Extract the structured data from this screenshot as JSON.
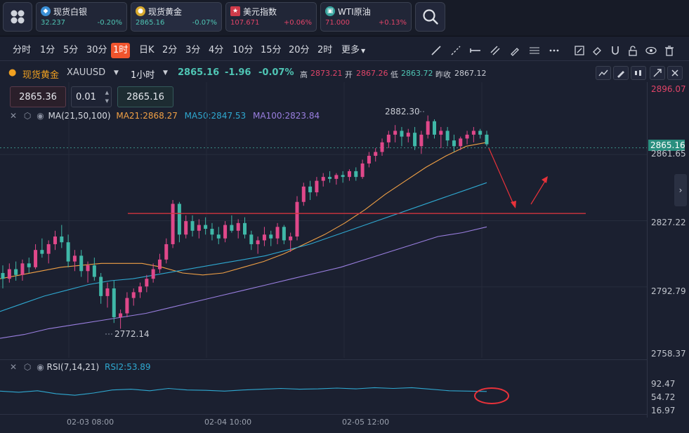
{
  "tickers": [
    {
      "name": "现货白银",
      "price": "32.237",
      "change": "-0.20%",
      "icon_color": "#3a8fd6",
      "price_color": "#4fc5b4",
      "change_color": "#4fc5b4",
      "icon": "silver-coin-icon"
    },
    {
      "name": "现货黄金",
      "price": "2865.16",
      "change": "-0.07%",
      "icon_color": "#d8a92e",
      "price_color": "#4fc5b4",
      "change_color": "#4fc5b4",
      "icon": "gold-coin-icon"
    },
    {
      "name": "美元指数",
      "price": "107.671",
      "change": "+0.06%",
      "icon_color": "#cf3b4a",
      "price_color": "#e04468",
      "change_color": "#e04468",
      "icon": "us-flag-icon"
    },
    {
      "name": "WTI原油",
      "price": "71.000",
      "change": "+0.13%",
      "icon_color": "#3aa6a0",
      "price_color": "#e04468",
      "change_color": "#e04468",
      "icon": "oil-icon"
    }
  ],
  "timeframes": [
    "分时",
    "1分",
    "5分",
    "30分",
    "1时",
    "日K",
    "2分",
    "3分",
    "4分",
    "10分",
    "15分",
    "20分",
    "2时",
    "更多"
  ],
  "active_timeframe": "1时",
  "header": {
    "symbol_cn": "现货黄金",
    "symbol": "XAUUSD",
    "period": "1小时",
    "last": "2865.16",
    "change": "-1.96",
    "change_pct": "-0.07%",
    "high_label": "高",
    "high": "2873.21",
    "open_label": "开",
    "open": "2867.26",
    "low_label": "低",
    "low": "2863.72",
    "prev_label": "昨收",
    "prev": "2867.12"
  },
  "order": {
    "price": "2865.36",
    "lots": "0.01",
    "price2": "2865.16"
  },
  "ma_legend": {
    "label": "MA(21,50,100)",
    "ma21": "MA21:2868.27",
    "ma50": "MA50:2847.53",
    "ma100": "MA100:2823.84"
  },
  "colors": {
    "up": "#e0488a",
    "down": "#3fb8a8",
    "ma21": "#f0a045",
    "ma50": "#2fa8d0",
    "ma100": "#9a7fe0",
    "accent": "#f0542d",
    "support": "#d0343e"
  },
  "price_axis": {
    "p1": "2896.07",
    "p2": "2865.16",
    "p3": "2861.65",
    "p4": "2827.22",
    "p5": "2792.79",
    "p6": "2758.37"
  },
  "annotations": {
    "high_label": "2882.30",
    "low_label": "2772.14"
  },
  "rsi": {
    "label": "RSI(7,14,21)",
    "value": "RSI2:53.89",
    "t1": "92.47",
    "t2": "54.72",
    "t3": "16.97"
  },
  "time_axis": [
    "02-03 08:00",
    "02-04 10:00",
    "02-05 12:00"
  ],
  "chart_data": {
    "type": "candlestick",
    "ylim": [
      2758.37,
      2896.07
    ],
    "candles": [
      [
        2800,
        2804,
        2792,
        2797
      ],
      [
        2797,
        2805,
        2795,
        2802
      ],
      [
        2802,
        2806,
        2796,
        2799
      ],
      [
        2799,
        2807,
        2796,
        2805
      ],
      [
        2805,
        2808,
        2800,
        2803
      ],
      [
        2803,
        2815,
        2802,
        2812
      ],
      [
        2812,
        2818,
        2808,
        2810
      ],
      [
        2810,
        2817,
        2805,
        2815
      ],
      [
        2815,
        2822,
        2812,
        2819
      ],
      [
        2819,
        2825,
        2813,
        2816
      ],
      [
        2816,
        2820,
        2803,
        2806
      ],
      [
        2806,
        2812,
        2801,
        2809
      ],
      [
        2809,
        2812,
        2798,
        2801
      ],
      [
        2801,
        2806,
        2795,
        2804
      ],
      [
        2804,
        2808,
        2796,
        2798
      ],
      [
        2798,
        2800,
        2784,
        2788
      ],
      [
        2788,
        2795,
        2782,
        2792
      ],
      [
        2792,
        2796,
        2774,
        2777
      ],
      [
        2777,
        2781,
        2771,
        2779
      ],
      [
        2779,
        2790,
        2777,
        2787
      ],
      [
        2787,
        2792,
        2783,
        2790
      ],
      [
        2790,
        2795,
        2787,
        2793
      ],
      [
        2793,
        2799,
        2790,
        2797
      ],
      [
        2797,
        2805,
        2795,
        2802
      ],
      [
        2802,
        2810,
        2800,
        2807
      ],
      [
        2807,
        2818,
        2805,
        2815
      ],
      [
        2815,
        2838,
        2813,
        2836
      ],
      [
        2836,
        2837,
        2816,
        2820
      ],
      [
        2820,
        2830,
        2818,
        2827
      ],
      [
        2827,
        2830,
        2819,
        2822
      ],
      [
        2822,
        2828,
        2818,
        2825
      ],
      [
        2825,
        2829,
        2820,
        2823
      ],
      [
        2823,
        2826,
        2817,
        2820
      ],
      [
        2820,
        2824,
        2815,
        2818
      ],
      [
        2818,
        2827,
        2816,
        2825
      ],
      [
        2825,
        2830,
        2821,
        2822
      ],
      [
        2822,
        2828,
        2818,
        2826
      ],
      [
        2826,
        2829,
        2818,
        2820
      ],
      [
        2820,
        2822,
        2812,
        2815
      ],
      [
        2815,
        2819,
        2810,
        2817
      ],
      [
        2817,
        2824,
        2814,
        2820
      ],
      [
        2820,
        2822,
        2814,
        2818
      ],
      [
        2818,
        2826,
        2815,
        2824
      ],
      [
        2824,
        2825,
        2815,
        2817
      ],
      [
        2817,
        2821,
        2811,
        2819
      ],
      [
        2819,
        2840,
        2817,
        2837
      ],
      [
        2837,
        2847,
        2835,
        2845
      ],
      [
        2845,
        2848,
        2838,
        2842
      ],
      [
        2842,
        2850,
        2840,
        2848
      ],
      [
        2848,
        2852,
        2845,
        2850
      ],
      [
        2850,
        2853,
        2847,
        2849
      ],
      [
        2849,
        2852,
        2846,
        2851
      ],
      [
        2851,
        2853,
        2847,
        2850
      ],
      [
        2850,
        2854,
        2848,
        2853
      ],
      [
        2853,
        2855,
        2848,
        2850
      ],
      [
        2850,
        2859,
        2849,
        2857
      ],
      [
        2857,
        2863,
        2855,
        2861
      ],
      [
        2861,
        2865,
        2858,
        2863
      ],
      [
        2863,
        2870,
        2861,
        2868
      ],
      [
        2868,
        2874,
        2865,
        2872
      ],
      [
        2872,
        2877,
        2868,
        2874
      ],
      [
        2874,
        2876,
        2866,
        2871
      ],
      [
        2871,
        2875,
        2868,
        2873
      ],
      [
        2873,
        2876,
        2864,
        2866
      ],
      [
        2866,
        2874,
        2862,
        2872
      ],
      [
        2872,
        2882,
        2870,
        2879
      ],
      [
        2879,
        2880,
        2870,
        2872
      ],
      [
        2872,
        2876,
        2865,
        2874
      ],
      [
        2874,
        2876,
        2866,
        2869
      ],
      [
        2869,
        2872,
        2863,
        2866
      ],
      [
        2866,
        2871,
        2864,
        2870
      ],
      [
        2870,
        2874,
        2867,
        2872
      ],
      [
        2872,
        2876,
        2868,
        2874
      ],
      [
        2874,
        2875,
        2870,
        2872
      ],
      [
        2872,
        2874,
        2866,
        2867
      ]
    ],
    "ma21": [
      2797,
      2799,
      2801,
      2803,
      2804,
      2805,
      2805,
      2805,
      2803,
      2800,
      2799,
      2800,
      2803,
      2806,
      2810,
      2815,
      2820,
      2826,
      2833,
      2841,
      2848,
      2855,
      2861,
      2866,
      2868
    ],
    "ma50": [
      2780,
      2784,
      2788,
      2791,
      2794,
      2796,
      2797,
      2799,
      2801,
      2803,
      2805,
      2807,
      2809,
      2812,
      2815,
      2819,
      2823,
      2827,
      2831,
      2835,
      2839,
      2843,
      2847
    ],
    "ma100": [
      2766,
      2768,
      2771,
      2773,
      2775,
      2777,
      2779,
      2782,
      2785,
      2788,
      2791,
      2794,
      2797,
      2800,
      2803,
      2807,
      2811,
      2815,
      2819,
      2821,
      2824
    ],
    "support_level": 2831,
    "rsi": [
      55,
      52,
      56,
      48,
      44,
      50,
      58,
      60,
      56,
      62,
      58,
      57,
      55,
      58,
      60,
      62,
      60,
      61,
      63,
      61,
      64,
      62,
      64,
      60,
      56,
      55,
      54
    ]
  }
}
